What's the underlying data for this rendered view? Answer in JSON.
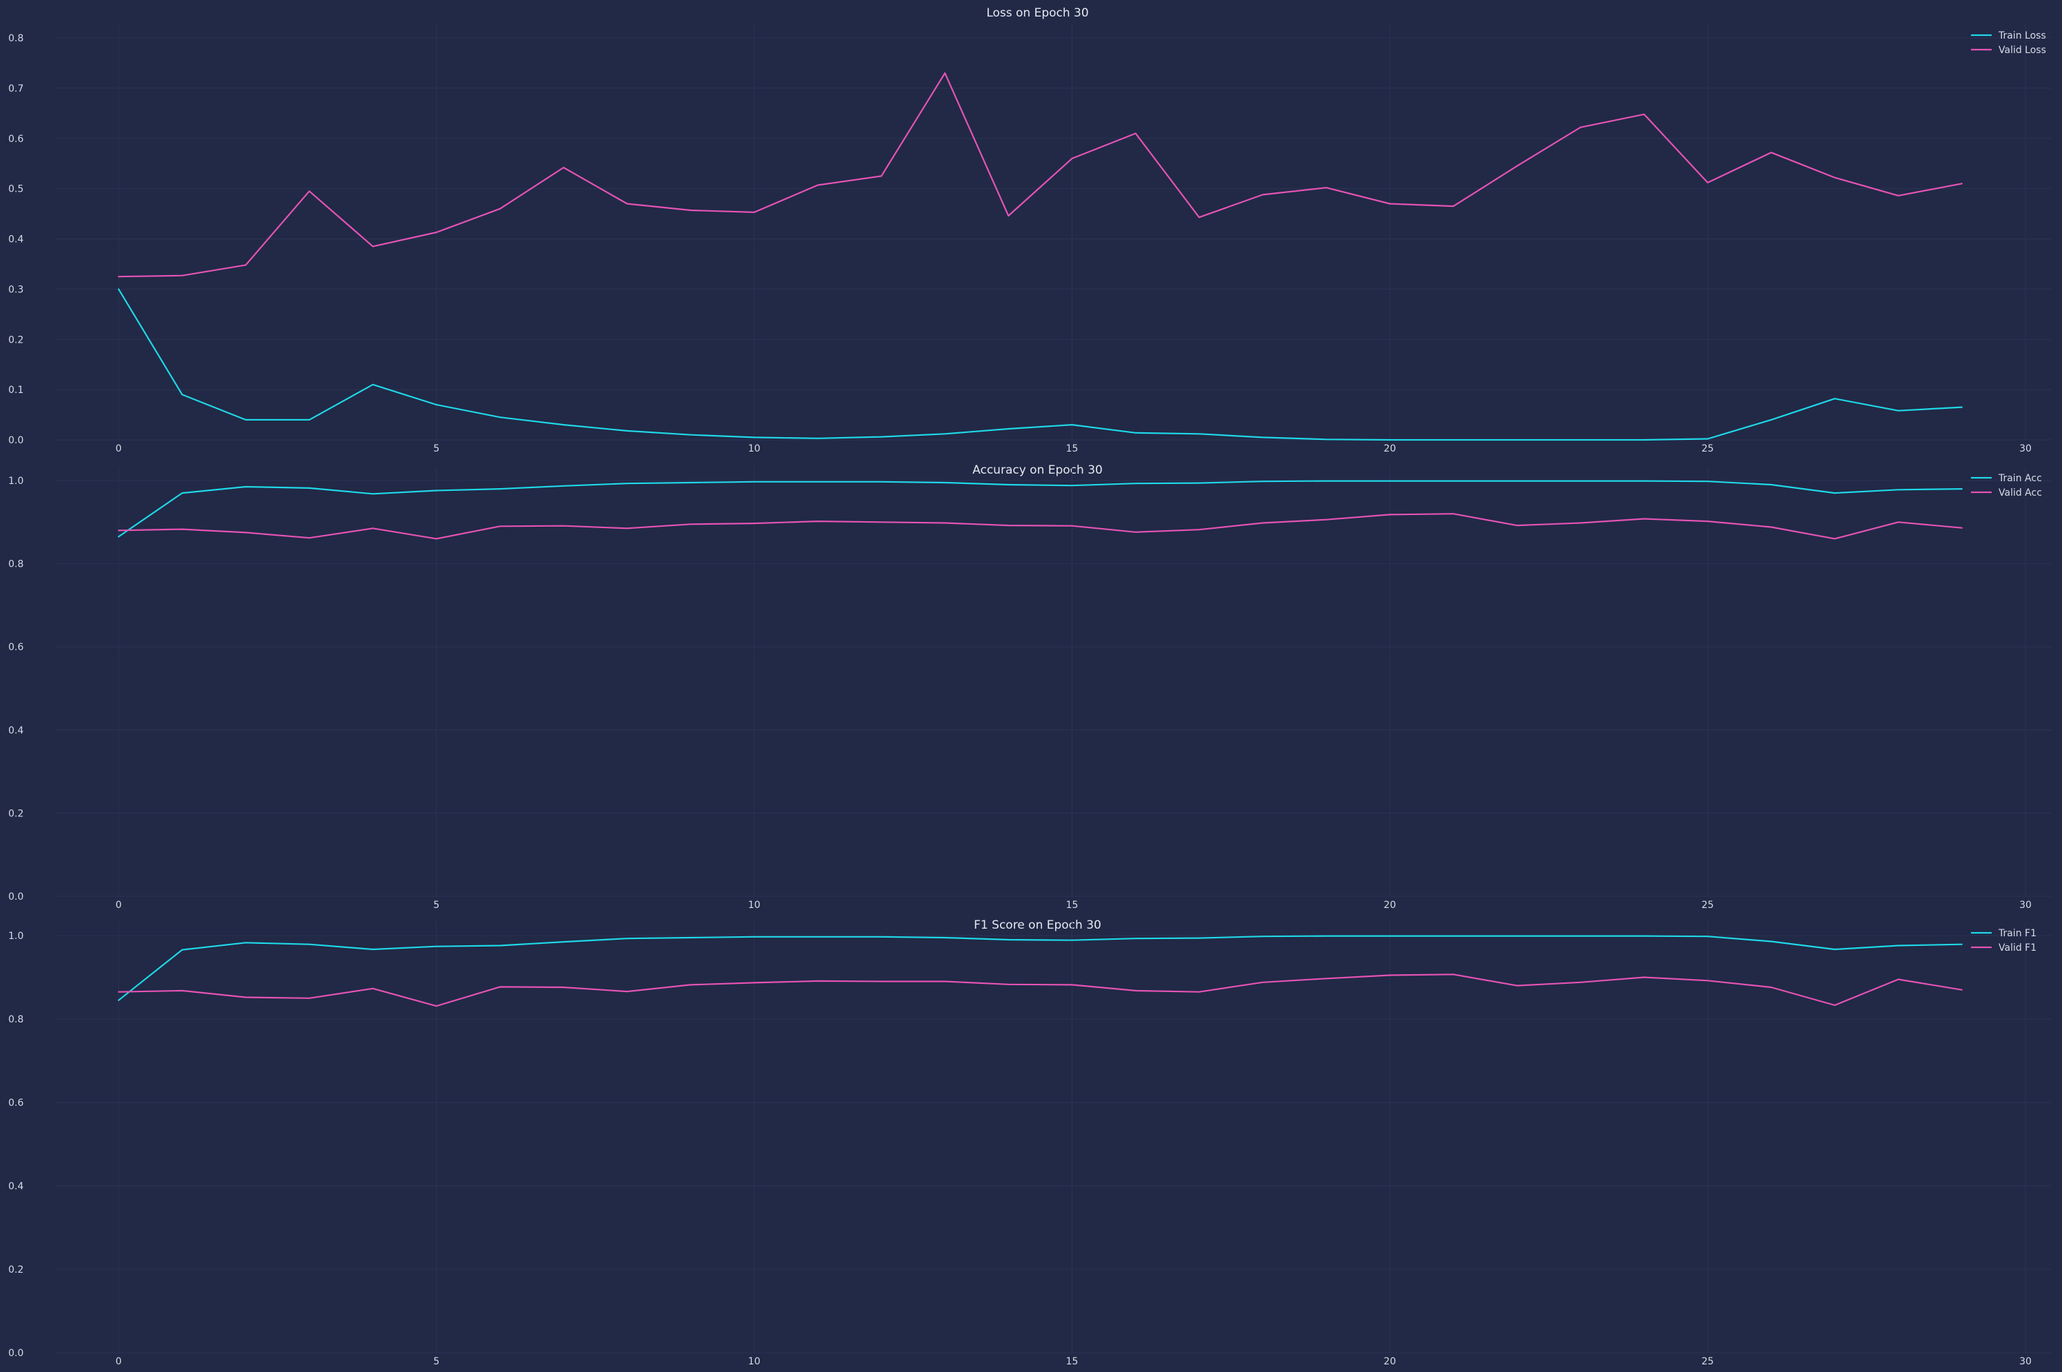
{
  "colors": {
    "background": "#212946",
    "train": "#1fd8e8",
    "valid": "#e553b4"
  },
  "chart_data": [
    {
      "type": "line",
      "title": "Loss on Epoch 30",
      "xlim": [
        0,
        30
      ],
      "ylim": [
        0,
        0.8
      ],
      "xticks": [
        "0",
        "5",
        "10",
        "15",
        "20",
        "25",
        "30"
      ],
      "yticks": [
        "0.0",
        "0.1",
        "0.2",
        "0.3",
        "0.4",
        "0.5",
        "0.6",
        "0.7",
        "0.8"
      ],
      "grid": true,
      "legend_position": "top-right",
      "x": [
        0,
        1,
        2,
        3,
        4,
        5,
        6,
        7,
        8,
        9,
        10,
        11,
        12,
        13,
        14,
        15,
        16,
        17,
        18,
        19,
        20,
        21,
        22,
        23,
        24,
        25,
        26,
        27,
        28,
        29
      ],
      "series": [
        {
          "name": "Train Loss",
          "color": "#1fd8e8",
          "values": [
            0.3,
            0.09,
            0.04,
            0.04,
            0.11,
            0.07,
            0.045,
            0.03,
            0.018,
            0.01,
            0.005,
            0.003,
            0.006,
            0.012,
            0.022,
            0.03,
            0.014,
            0.012,
            0.005,
            0.001,
            0.0,
            0.0,
            0.0,
            0.0,
            0.0,
            0.002,
            0.04,
            0.082,
            0.058,
            0.065
          ]
        },
        {
          "name": "Valid Loss",
          "color": "#e553b4",
          "values": [
            0.325,
            0.327,
            0.348,
            0.495,
            0.385,
            0.413,
            0.46,
            0.542,
            0.47,
            0.457,
            0.453,
            0.507,
            0.525,
            0.73,
            0.446,
            0.56,
            0.61,
            0.443,
            0.488,
            0.502,
            0.47,
            0.465,
            0.545,
            0.622,
            0.648,
            0.512,
            0.572,
            0.522,
            0.486,
            0.51
          ]
        }
      ]
    },
    {
      "type": "line",
      "title": "Accuracy on Epoch 30",
      "xlim": [
        0,
        30
      ],
      "ylim": [
        0,
        1.0
      ],
      "xticks": [
        "0",
        "5",
        "10",
        "15",
        "20",
        "25",
        "30"
      ],
      "yticks": [
        "0.0",
        "0.2",
        "0.4",
        "0.6",
        "0.8",
        "1.0"
      ],
      "grid": true,
      "legend_position": "top-right",
      "x": [
        0,
        1,
        2,
        3,
        4,
        5,
        6,
        7,
        8,
        9,
        10,
        11,
        12,
        13,
        14,
        15,
        16,
        17,
        18,
        19,
        20,
        21,
        22,
        23,
        24,
        25,
        26,
        27,
        28,
        29
      ],
      "series": [
        {
          "name": "Train Acc",
          "color": "#1fd8e8",
          "values": [
            0.865,
            0.97,
            0.985,
            0.982,
            0.968,
            0.976,
            0.98,
            0.987,
            0.993,
            0.995,
            0.997,
            0.997,
            0.997,
            0.995,
            0.99,
            0.988,
            0.993,
            0.994,
            0.998,
            0.999,
            0.999,
            0.999,
            0.999,
            0.999,
            0.999,
            0.998,
            0.99,
            0.97,
            0.978,
            0.98
          ]
        },
        {
          "name": "Valid Acc",
          "color": "#e553b4",
          "values": [
            0.88,
            0.883,
            0.875,
            0.862,
            0.885,
            0.86,
            0.89,
            0.891,
            0.885,
            0.895,
            0.897,
            0.902,
            0.9,
            0.898,
            0.892,
            0.891,
            0.876,
            0.882,
            0.898,
            0.906,
            0.918,
            0.92,
            0.892,
            0.898,
            0.908,
            0.902,
            0.888,
            0.86,
            0.9,
            0.886
          ]
        }
      ]
    },
    {
      "type": "line",
      "title": "F1 Score on Epoch 30",
      "xlim": [
        0,
        30
      ],
      "ylim": [
        0,
        1.0
      ],
      "xticks": [
        "0",
        "5",
        "10",
        "15",
        "20",
        "25",
        "30"
      ],
      "yticks": [
        "0.0",
        "0.2",
        "0.4",
        "0.6",
        "0.8",
        "1.0"
      ],
      "grid": true,
      "legend_position": "top-right",
      "x": [
        0,
        1,
        2,
        3,
        4,
        5,
        6,
        7,
        8,
        9,
        10,
        11,
        12,
        13,
        14,
        15,
        16,
        17,
        18,
        19,
        20,
        21,
        22,
        23,
        24,
        25,
        26,
        27,
        28,
        29
      ],
      "series": [
        {
          "name": "Train F1",
          "color": "#1fd8e8",
          "values": [
            0.845,
            0.966,
            0.983,
            0.979,
            0.967,
            0.974,
            0.976,
            0.985,
            0.993,
            0.995,
            0.997,
            0.997,
            0.997,
            0.995,
            0.99,
            0.989,
            0.993,
            0.994,
            0.998,
            0.999,
            0.999,
            0.999,
            0.999,
            0.999,
            0.999,
            0.998,
            0.986,
            0.967,
            0.976,
            0.979
          ]
        },
        {
          "name": "Valid F1",
          "color": "#e553b4",
          "values": [
            0.865,
            0.868,
            0.852,
            0.85,
            0.873,
            0.831,
            0.877,
            0.876,
            0.866,
            0.882,
            0.887,
            0.891,
            0.89,
            0.89,
            0.883,
            0.882,
            0.868,
            0.865,
            0.888,
            0.897,
            0.905,
            0.907,
            0.88,
            0.888,
            0.9,
            0.892,
            0.876,
            0.833,
            0.895,
            0.87
          ]
        }
      ]
    }
  ]
}
